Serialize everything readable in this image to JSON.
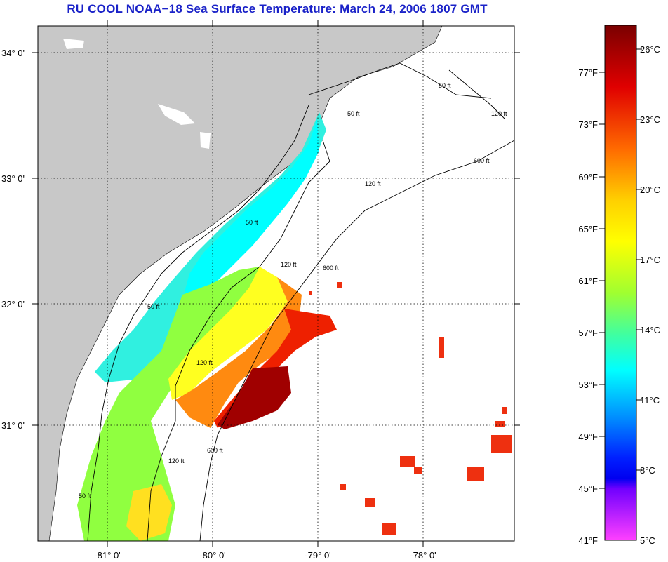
{
  "title": "RU COOL  NOAA−18  Sea Surface Temperature:  March 24, 2006 1807 GMT",
  "map": {
    "lat_labels": [
      "34° 0'",
      "33° 0'",
      "32° 0'",
      "31° 0'"
    ],
    "lon_labels": [
      "-81° 0'",
      "-80° 0'",
      "-79° 0'",
      "-78° 0'"
    ],
    "contour_labels": {
      "ft50": "50 ft",
      "ft120": "120 ft",
      "ft600": "600 ft"
    },
    "colors": {
      "land": "#c8c8c8",
      "nodata": "#ffffff",
      "grid": "#000000"
    }
  },
  "colorbar": {
    "celsius_labels": [
      "26°C",
      "23°C",
      "20°C",
      "17°C",
      "14°C",
      "11°C",
      "8°C",
      "5°C"
    ],
    "fahrenheit_labels": [
      "77°F",
      "73°F",
      "69°F",
      "65°F",
      "61°F",
      "57°F",
      "53°F",
      "49°F",
      "45°F",
      "41°F"
    ],
    "gradient": [
      "#8b0000",
      "#ff0000",
      "#ff8000",
      "#ffff00",
      "#80ff40",
      "#00ffff",
      "#0080ff",
      "#0000ff",
      "#8000ff",
      "#ff40ff"
    ]
  }
}
